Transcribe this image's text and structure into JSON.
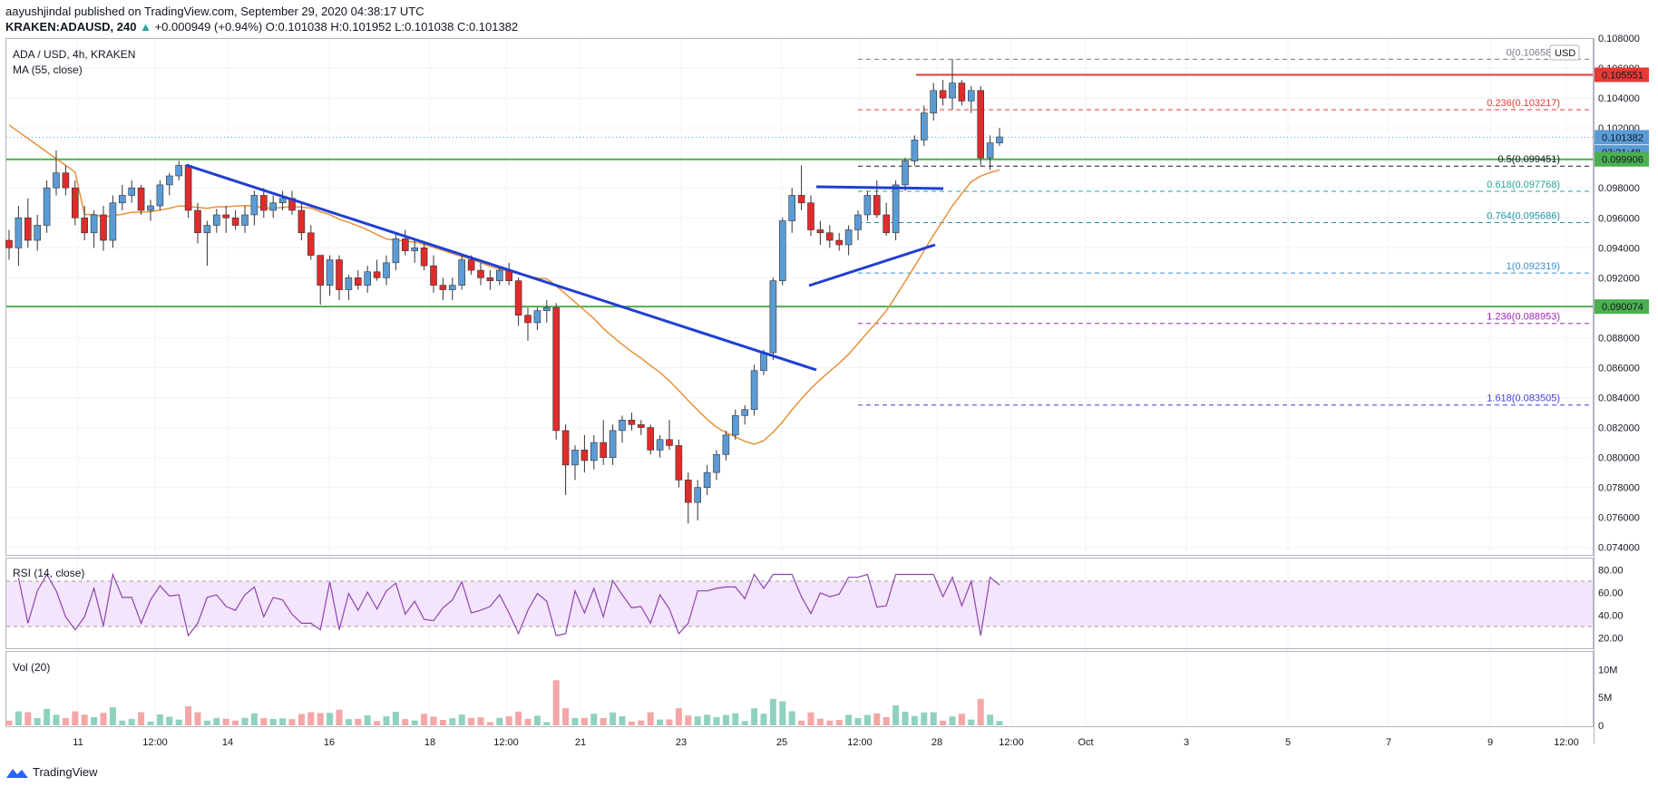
{
  "header": {
    "author": "aayushjindal",
    "published": "published on TradingView.com, September 29, 2020 04:38:17 UTC",
    "symbol": "KRAKEN:ADAUSD, 240",
    "change_abs": "+0.000949",
    "change_pct": "(+0.94%)",
    "open": "O:0.101038",
    "high": "H:0.101952",
    "low": "L:0.101038",
    "close": "C:0.101382"
  },
  "main_legend": {
    "title": "ADA / USD, 4h, KRAKEN",
    "ma": "MA (55, close)",
    "currency": "USD"
  },
  "rsi_legend": "RSI (14, close)",
  "vol_legend": "Vol (20)",
  "brand": "TradingView",
  "colors": {
    "up": "#26a69a",
    "down": "#ef5350",
    "upFill": "#5b9bd5",
    "downFill": "#e02b2b",
    "ma": "#e8913a",
    "trend": "#1e3fd4",
    "green": "#4caf50",
    "red": "#e53935"
  },
  "chart_data": {
    "type": "candlestick",
    "title": "ADA / USD, 4h, KRAKEN",
    "ylim": [
      0.0735,
      0.108
    ],
    "price_ticks": [
      "0.108000",
      "0.106000",
      "0.104000",
      "0.102000",
      "0.098000",
      "0.096000",
      "0.094000",
      "0.092000",
      "0.088000",
      "0.086000",
      "0.084000",
      "0.082000",
      "0.080000",
      "0.078000",
      "0.076000",
      "0.074000"
    ],
    "x_ticks": [
      "11",
      "12:00",
      "14",
      "16",
      "18",
      "12:00",
      "21",
      "23",
      "25",
      "12:00",
      "28",
      "12:00",
      "Oct",
      "3",
      "5",
      "7",
      "9",
      "12:00"
    ],
    "price_badges": [
      {
        "label": "0.105551",
        "value": 0.105551,
        "color": "#e53935"
      },
      {
        "label": "0.101382",
        "value": 0.101382,
        "color": "#5b9bd5"
      },
      {
        "label": "03:21:48",
        "value": 0.10037,
        "color": "#5b9bd5"
      },
      {
        "label": "0.099906",
        "value": 0.099906,
        "color": "#4caf50"
      },
      {
        "label": "0.090074",
        "value": 0.090074,
        "color": "#4caf50"
      }
    ],
    "horizontal_lines": [
      {
        "value": 0.105551,
        "color": "#e53935"
      },
      {
        "value": 0.099906,
        "color": "#4caf50"
      },
      {
        "value": 0.090074,
        "color": "#4caf50"
      }
    ],
    "fib_levels": [
      {
        "label": "0(0.106583)",
        "value": 0.106583,
        "color": "#787b86"
      },
      {
        "label": "0.236(0.103217)",
        "value": 0.103217,
        "color": "#e53935"
      },
      {
        "label": "0.5(0.099451)",
        "value": 0.099451,
        "color": "#131722"
      },
      {
        "label": "0.618(0.097768)",
        "value": 0.097768,
        "color": "#26a69a"
      },
      {
        "label": "0.764(0.095686)",
        "value": 0.095686,
        "color": "#2196a6"
      },
      {
        "label": "1(0.092319)",
        "value": 0.092319,
        "color": "#3a8fd4"
      },
      {
        "label": "1.236(0.088953)",
        "value": 0.088953,
        "color": "#9c27b0"
      },
      {
        "label": "1.618(0.083505)",
        "value": 0.083505,
        "color": "#3f3fd6"
      }
    ],
    "candles": [
      [
        0.0945,
        0.0952,
        0.0932,
        0.094
      ],
      [
        0.094,
        0.0968,
        0.0928,
        0.096
      ],
      [
        0.096,
        0.0973,
        0.094,
        0.0945
      ],
      [
        0.0945,
        0.0962,
        0.0938,
        0.0955
      ],
      [
        0.0955,
        0.0985,
        0.095,
        0.098
      ],
      [
        0.098,
        0.1005,
        0.0975,
        0.099
      ],
      [
        0.099,
        0.0995,
        0.0975,
        0.098
      ],
      [
        0.098,
        0.0985,
        0.0955,
        0.096
      ],
      [
        0.096,
        0.0968,
        0.0945,
        0.095
      ],
      [
        0.095,
        0.0965,
        0.094,
        0.0962
      ],
      [
        0.0962,
        0.0968,
        0.0938,
        0.0945
      ],
      [
        0.0945,
        0.0975,
        0.094,
        0.097
      ],
      [
        0.097,
        0.0982,
        0.0965,
        0.0975
      ],
      [
        0.0975,
        0.0985,
        0.097,
        0.098
      ],
      [
        0.098,
        0.0982,
        0.0962,
        0.0965
      ],
      [
        0.0965,
        0.0972,
        0.0958,
        0.0968
      ],
      [
        0.0968,
        0.0985,
        0.0965,
        0.0982
      ],
      [
        0.0982,
        0.099,
        0.0975,
        0.0988
      ],
      [
        0.0988,
        0.0998,
        0.0985,
        0.0995
      ],
      [
        0.0995,
        0.0996,
        0.096,
        0.0965
      ],
      [
        0.0965,
        0.097,
        0.0943,
        0.095
      ],
      [
        0.095,
        0.0958,
        0.0928,
        0.0955
      ],
      [
        0.0955,
        0.0966,
        0.095,
        0.0962
      ],
      [
        0.0962,
        0.0968,
        0.095,
        0.096
      ],
      [
        0.096,
        0.0965,
        0.0952,
        0.0955
      ],
      [
        0.0955,
        0.0968,
        0.095,
        0.0962
      ],
      [
        0.0962,
        0.0978,
        0.0955,
        0.0975
      ],
      [
        0.0975,
        0.098,
        0.096,
        0.0965
      ],
      [
        0.0965,
        0.0975,
        0.096,
        0.097
      ],
      [
        0.097,
        0.0978,
        0.0965,
        0.0973
      ],
      [
        0.0973,
        0.0978,
        0.0962,
        0.0965
      ],
      [
        0.0965,
        0.097,
        0.0945,
        0.095
      ],
      [
        0.095,
        0.0955,
        0.0932,
        0.0935
      ],
      [
        0.0935,
        0.0935,
        0.0902,
        0.0915
      ],
      [
        0.0915,
        0.0935,
        0.0908,
        0.0932
      ],
      [
        0.0932,
        0.0935,
        0.0905,
        0.0912
      ],
      [
        0.0912,
        0.0922,
        0.0905,
        0.092
      ],
      [
        0.092,
        0.0925,
        0.0912,
        0.0915
      ],
      [
        0.0915,
        0.0928,
        0.091,
        0.0924
      ],
      [
        0.0924,
        0.0932,
        0.0918,
        0.092
      ],
      [
        0.092,
        0.0935,
        0.0915,
        0.093
      ],
      [
        0.093,
        0.095,
        0.0925,
        0.0946
      ],
      [
        0.0946,
        0.0952,
        0.0935,
        0.0938
      ],
      [
        0.0938,
        0.0945,
        0.093,
        0.094
      ],
      [
        0.094,
        0.0943,
        0.0925,
        0.0928
      ],
      [
        0.0928,
        0.0935,
        0.091,
        0.0915
      ],
      [
        0.0915,
        0.092,
        0.0905,
        0.0912
      ],
      [
        0.0912,
        0.092,
        0.0905,
        0.0915
      ],
      [
        0.0915,
        0.0935,
        0.0912,
        0.0932
      ],
      [
        0.0932,
        0.0935,
        0.0922,
        0.0925
      ],
      [
        0.0925,
        0.093,
        0.0915,
        0.092
      ],
      [
        0.092,
        0.0925,
        0.0912,
        0.0918
      ],
      [
        0.0918,
        0.0928,
        0.0915,
        0.0925
      ],
      [
        0.0925,
        0.093,
        0.0915,
        0.0918
      ],
      [
        0.0918,
        0.092,
        0.0888,
        0.0895
      ],
      [
        0.0895,
        0.09,
        0.0878,
        0.089
      ],
      [
        0.089,
        0.09,
        0.0885,
        0.0898
      ],
      [
        0.0898,
        0.0905,
        0.089,
        0.09
      ],
      [
        0.09,
        0.0903,
        0.0812,
        0.0818
      ],
      [
        0.0818,
        0.0822,
        0.0775,
        0.0795
      ],
      [
        0.0795,
        0.0808,
        0.0785,
        0.0805
      ],
      [
        0.0805,
        0.0815,
        0.079,
        0.0798
      ],
      [
        0.0798,
        0.0815,
        0.0792,
        0.081
      ],
      [
        0.081,
        0.0825,
        0.0795,
        0.08
      ],
      [
        0.08,
        0.0822,
        0.0795,
        0.0818
      ],
      [
        0.0818,
        0.0828,
        0.081,
        0.0825
      ],
      [
        0.0825,
        0.083,
        0.0818,
        0.0822
      ],
      [
        0.0822,
        0.0825,
        0.0815,
        0.082
      ],
      [
        0.082,
        0.0822,
        0.0802,
        0.0805
      ],
      [
        0.0805,
        0.0815,
        0.08,
        0.0812
      ],
      [
        0.0812,
        0.0825,
        0.0805,
        0.0808
      ],
      [
        0.0808,
        0.0812,
        0.078,
        0.0785
      ],
      [
        0.0785,
        0.079,
        0.0756,
        0.077
      ],
      [
        0.077,
        0.0785,
        0.0758,
        0.078
      ],
      [
        0.078,
        0.0795,
        0.0775,
        0.079
      ],
      [
        0.079,
        0.0805,
        0.0785,
        0.0802
      ],
      [
        0.0802,
        0.0818,
        0.0798,
        0.0815
      ],
      [
        0.0815,
        0.0832,
        0.0812,
        0.0828
      ],
      [
        0.0828,
        0.0835,
        0.0822,
        0.0832
      ],
      [
        0.0832,
        0.0862,
        0.0828,
        0.0858
      ],
      [
        0.0858,
        0.0872,
        0.0855,
        0.087
      ],
      [
        0.087,
        0.092,
        0.0865,
        0.0918
      ],
      [
        0.0918,
        0.096,
        0.0915,
        0.0958
      ],
      [
        0.0958,
        0.098,
        0.095,
        0.0975
      ],
      [
        0.0975,
        0.0995,
        0.0965,
        0.097
      ],
      [
        0.097,
        0.0975,
        0.0948,
        0.0952
      ],
      [
        0.0952,
        0.0958,
        0.0942,
        0.095
      ],
      [
        0.095,
        0.0955,
        0.094,
        0.0945
      ],
      [
        0.0945,
        0.095,
        0.0938,
        0.0942
      ],
      [
        0.0942,
        0.0955,
        0.0935,
        0.0952
      ],
      [
        0.0952,
        0.0965,
        0.0945,
        0.0962
      ],
      [
        0.0962,
        0.0978,
        0.0958,
        0.0975
      ],
      [
        0.0975,
        0.0985,
        0.096,
        0.0962
      ],
      [
        0.0962,
        0.097,
        0.0948,
        0.095
      ],
      [
        0.095,
        0.0985,
        0.0945,
        0.0982
      ],
      [
        0.0982,
        0.1,
        0.0978,
        0.0998
      ],
      [
        0.0998,
        0.1015,
        0.0995,
        0.1012
      ],
      [
        0.1012,
        0.1035,
        0.1008,
        0.103
      ],
      [
        0.103,
        0.105,
        0.1025,
        0.1045
      ],
      [
        0.1045,
        0.1052,
        0.1035,
        0.104
      ],
      [
        0.104,
        0.1066,
        0.1032,
        0.105
      ],
      [
        0.105,
        0.1052,
        0.1035,
        0.1038
      ],
      [
        0.1038,
        0.1048,
        0.103,
        0.1045
      ],
      [
        0.1045,
        0.1048,
        0.0995,
        0.1
      ],
      [
        0.1,
        0.1015,
        0.0992,
        0.101
      ],
      [
        0.101,
        0.102,
        0.1008,
        0.1014
      ]
    ],
    "rsi": {
      "ylim": [
        10,
        90
      ],
      "ticks": [
        "80.00",
        "60.00",
        "40.00",
        "20.00"
      ]
    },
    "volume": {
      "ticks": [
        "10M",
        "5M",
        "0"
      ]
    }
  }
}
